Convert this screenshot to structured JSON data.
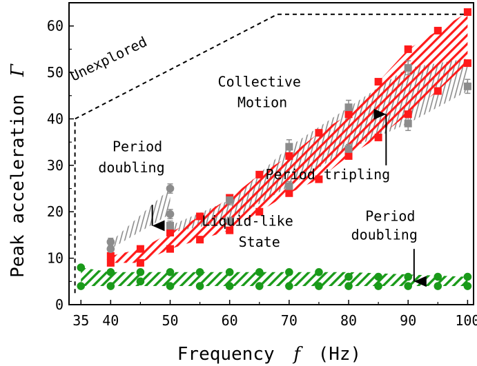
{
  "chart_data": {
    "type": "scatter",
    "xlabel": "Frequency",
    "xsymbol": "f",
    "xunit": "(Hz)",
    "ylabel": "Peak acceleration",
    "ysymbol": "Γ",
    "xlim": [
      33,
      101
    ],
    "ylim": [
      0,
      65
    ],
    "xticks": [
      35,
      40,
      50,
      60,
      70,
      80,
      90,
      100
    ],
    "xtick_labels": [
      "35",
      "40",
      "50",
      "60",
      "70",
      "80",
      "90",
      "100"
    ],
    "yticks": [
      0,
      10,
      20,
      30,
      40,
      50,
      60
    ],
    "ytick_labels": [
      "0",
      "10",
      "20",
      "30",
      "40",
      "50",
      "60"
    ],
    "grid": false,
    "colors": {
      "red": "#ff1a1a",
      "gray": "#8c8c8c",
      "green": "#1a9a1a",
      "axis": "#000000"
    },
    "series": [
      {
        "marker": "square",
        "color": "#ff1a1a",
        "points": [
          {
            "x": 40,
            "y": 9
          },
          {
            "x": 40,
            "y": 10.5
          },
          {
            "x": 45,
            "y": 9
          },
          {
            "x": 45,
            "y": 12
          },
          {
            "x": 50,
            "y": 12
          },
          {
            "x": 50,
            "y": 15.5
          },
          {
            "x": 55,
            "y": 14
          },
          {
            "x": 55,
            "y": 19
          },
          {
            "x": 60,
            "y": 16
          },
          {
            "x": 60,
            "y": 23
          },
          {
            "x": 65,
            "y": 20
          },
          {
            "x": 65,
            "y": 28
          },
          {
            "x": 70,
            "y": 24
          },
          {
            "x": 70,
            "y": 32
          },
          {
            "x": 75,
            "y": 27
          },
          {
            "x": 75,
            "y": 37
          },
          {
            "x": 80,
            "y": 32
          },
          {
            "x": 80,
            "y": 41
          },
          {
            "x": 85,
            "y": 36
          },
          {
            "x": 85,
            "y": 48
          },
          {
            "x": 90,
            "y": 41
          },
          {
            "x": 90,
            "y": 55
          },
          {
            "x": 95,
            "y": 46
          },
          {
            "x": 95,
            "y": 59
          },
          {
            "x": 100,
            "y": 52
          },
          {
            "x": 100,
            "y": 63
          }
        ]
      },
      {
        "marker": "square",
        "color": "#8c8c8c",
        "points": [
          {
            "x": 50,
            "y": 17,
            "err": 1
          },
          {
            "x": 60,
            "y": 22.5,
            "err": 1
          },
          {
            "x": 70,
            "y": 34,
            "err": 1.5
          },
          {
            "x": 70,
            "y": 25.5,
            "err": 1
          },
          {
            "x": 80,
            "y": 42.5,
            "err": 1.5
          },
          {
            "x": 80,
            "y": 33.5,
            "err": 1
          },
          {
            "x": 90,
            "y": 51,
            "err": 1.5
          },
          {
            "x": 90,
            "y": 39,
            "err": 1.5
          },
          {
            "x": 100,
            "y": 47,
            "err": 1.5
          }
        ]
      },
      {
        "marker": "circle",
        "color": "#8c8c8c",
        "points": [
          {
            "x": 40,
            "y": 12,
            "err": 1
          },
          {
            "x": 40,
            "y": 13.5,
            "err": 0.8
          },
          {
            "x": 50,
            "y": 25,
            "err": 1
          },
          {
            "x": 50,
            "y": 19.5,
            "err": 1
          },
          {
            "x": 60,
            "y": 18,
            "err": 0.8
          }
        ]
      },
      {
        "marker": "circle",
        "color": "#1a9a1a",
        "points": [
          {
            "x": 35,
            "y": 8
          },
          {
            "x": 35,
            "y": 4
          },
          {
            "x": 40,
            "y": 7
          },
          {
            "x": 40,
            "y": 4
          },
          {
            "x": 45,
            "y": 7
          },
          {
            "x": 45,
            "y": 5
          },
          {
            "x": 50,
            "y": 7
          },
          {
            "x": 50,
            "y": 4
          },
          {
            "x": 55,
            "y": 7
          },
          {
            "x": 55,
            "y": 4
          },
          {
            "x": 60,
            "y": 7
          },
          {
            "x": 60,
            "y": 4
          },
          {
            "x": 65,
            "y": 7
          },
          {
            "x": 65,
            "y": 4
          },
          {
            "x": 70,
            "y": 7
          },
          {
            "x": 70,
            "y": 4
          },
          {
            "x": 75,
            "y": 7
          },
          {
            "x": 75,
            "y": 4
          },
          {
            "x": 80,
            "y": 6
          },
          {
            "x": 80,
            "y": 4
          },
          {
            "x": 85,
            "y": 6
          },
          {
            "x": 85,
            "y": 4
          },
          {
            "x": 90,
            "y": 6
          },
          {
            "x": 90,
            "y": 4
          },
          {
            "x": 95,
            "y": 6
          },
          {
            "x": 95,
            "y": 4
          },
          {
            "x": 100,
            "y": 6
          },
          {
            "x": 100,
            "y": 4
          }
        ]
      }
    ],
    "regions": {
      "red_band": {
        "color": "#ff1a1a",
        "upper": [
          [
            40,
            10.5
          ],
          [
            45,
            12
          ],
          [
            50,
            15.5
          ],
          [
            55,
            19
          ],
          [
            60,
            23
          ],
          [
            65,
            28
          ],
          [
            70,
            32
          ],
          [
            75,
            37
          ],
          [
            80,
            41
          ],
          [
            85,
            48
          ],
          [
            90,
            55
          ],
          [
            95,
            59
          ],
          [
            100,
            63
          ]
        ],
        "lower": [
          [
            40,
            9
          ],
          [
            45,
            9
          ],
          [
            50,
            12
          ],
          [
            55,
            14
          ],
          [
            60,
            16
          ],
          [
            65,
            20
          ],
          [
            70,
            24
          ],
          [
            75,
            27
          ],
          [
            80,
            32
          ],
          [
            85,
            36
          ],
          [
            90,
            41
          ],
          [
            95,
            46
          ],
          [
            100,
            52
          ]
        ]
      },
      "gray_low_band": {
        "color": "#8c8c8c",
        "upper": [
          [
            40,
            13.5
          ],
          [
            50,
            25
          ]
        ],
        "lower": [
          [
            40,
            12
          ],
          [
            50,
            19.5
          ]
        ]
      },
      "gray_high_band": {
        "color": "#8c8c8c",
        "upper": [
          [
            50,
            17
          ],
          [
            60,
            22.5
          ],
          [
            70,
            34
          ],
          [
            80,
            42.5
          ],
          [
            90,
            51
          ],
          [
            100,
            53
          ]
        ],
        "lower": [
          [
            50,
            15.5
          ],
          [
            60,
            18
          ],
          [
            70,
            25.5
          ],
          [
            80,
            33.5
          ],
          [
            90,
            39
          ],
          [
            100,
            46
          ]
        ]
      },
      "green_band": {
        "color": "#1a9a1a",
        "upper": [
          [
            35,
            8
          ],
          [
            40,
            7
          ],
          [
            80,
            7
          ],
          [
            100,
            6
          ]
        ],
        "lower": [
          [
            35,
            4
          ],
          [
            100,
            4
          ]
        ]
      },
      "unexplored_boundary": [
        [
          34,
          2.5
        ],
        [
          34,
          40
        ],
        [
          68,
          62.5
        ],
        [
          100,
          62.5
        ]
      ]
    },
    "annotations": [
      {
        "text": "Unexplored",
        "x": 40,
        "y": 52,
        "rotate": -26
      },
      {
        "text": "Collective",
        "x": 65,
        "y": 47
      },
      {
        "text": "Motion",
        "x": 65.5,
        "y": 42.5
      },
      {
        "text": "Period",
        "x": 44.5,
        "y": 33
      },
      {
        "text": "doubling",
        "x": 43.5,
        "y": 28.5
      },
      {
        "text": "Period tripling",
        "x": 76.5,
        "y": 27
      },
      {
        "text": "Liquid-like",
        "x": 63,
        "y": 17
      },
      {
        "text": "State",
        "x": 65,
        "y": 12.5
      },
      {
        "text": "Period",
        "x": 87,
        "y": 18
      },
      {
        "text": "doubling",
        "x": 86,
        "y": 14
      }
    ],
    "arrows": [
      {
        "from": [
          47,
          21.5
        ],
        "to": [
          47,
          17
        ]
      },
      {
        "from": [
          86.3,
          30
        ],
        "to": [
          86.3,
          41
        ]
      },
      {
        "from": [
          91,
          12
        ],
        "to": [
          91,
          5
        ]
      }
    ]
  }
}
